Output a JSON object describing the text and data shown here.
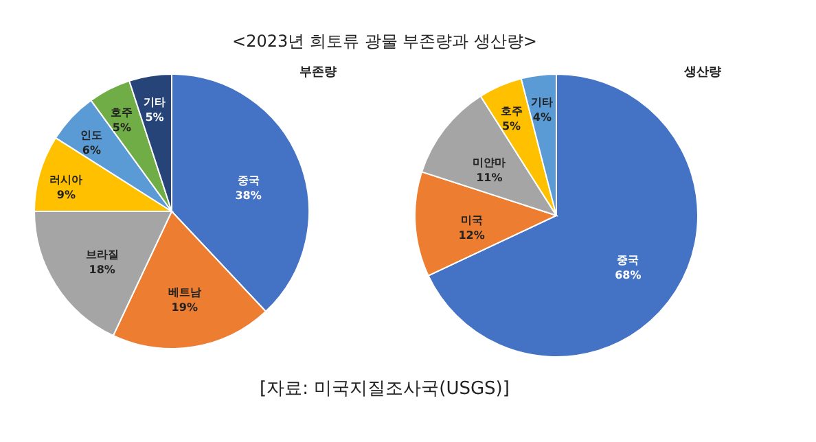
{
  "chart_data": [
    {
      "type": "pie",
      "title": "부존량",
      "annotations": [
        "<2023년 희토류 광물 부존량과 생산량>"
      ],
      "categories": [
        "중국",
        "베트남",
        "브라질",
        "러시아",
        "인도",
        "호주",
        "기타"
      ],
      "values": [
        38,
        19,
        18,
        9,
        6,
        5,
        5
      ],
      "value_labels": [
        "38%",
        "19%",
        "18%",
        "9%",
        "6%",
        "5%",
        "5%"
      ],
      "colors": [
        "#4472c4",
        "#ed7d31",
        "#a5a5a5",
        "#ffc000",
        "#5b9bd5",
        "#70ad47",
        "#264478"
      ],
      "legend": false
    },
    {
      "type": "pie",
      "title": "생산량",
      "annotations": [
        "[자료: 미국지질조사국(USGS)]"
      ],
      "categories": [
        "중국",
        "미국",
        "미얀마",
        "호주",
        "기타"
      ],
      "values": [
        68,
        12,
        11,
        5,
        4
      ],
      "value_labels": [
        "68%",
        "12%",
        "11%",
        "5%",
        "4%"
      ],
      "colors": [
        "#4472c4",
        "#ed7d31",
        "#a5a5a5",
        "#ffc000",
        "#5b9bd5"
      ],
      "legend": false
    }
  ]
}
